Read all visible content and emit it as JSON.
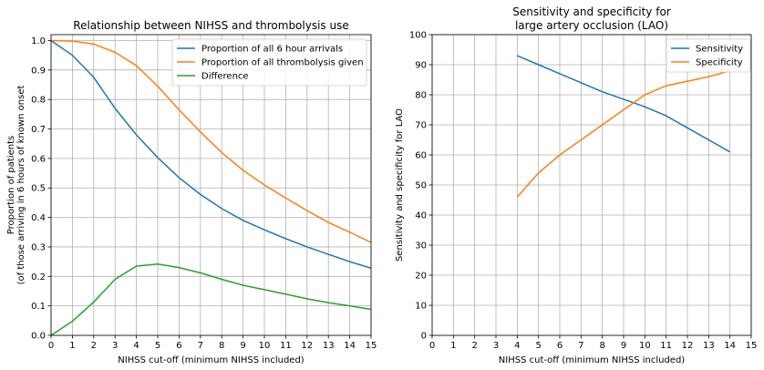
{
  "chart_data": [
    {
      "type": "line",
      "title": "Relationship between NIHSS and thrombolysis use",
      "xlabel": "NIHSS cut-off (minimum NIHSS included)",
      "ylabel": [
        "Proportion of patients",
        "(of those arriving in 6 hours of known onset"
      ],
      "xlim": [
        0,
        15
      ],
      "ylim": [
        0,
        1.02
      ],
      "xticks": [
        0,
        1,
        2,
        3,
        4,
        5,
        6,
        7,
        8,
        9,
        10,
        11,
        12,
        13,
        14,
        15
      ],
      "yticks": [
        0.0,
        0.1,
        0.2,
        0.3,
        0.4,
        0.5,
        0.6,
        0.7,
        0.8,
        0.9,
        1.0
      ],
      "ytick_labels": [
        "0.0",
        "0.1",
        "0.2",
        "0.3",
        "0.4",
        "0.5",
        "0.6",
        "0.7",
        "0.8",
        "0.9",
        "1.0"
      ],
      "grid": true,
      "legend_position": "top-right",
      "series": [
        {
          "name": "Proportion of all 6 hour arrivals",
          "color": "#1f77b4",
          "x": [
            0,
            1,
            2,
            3,
            4,
            5,
            6,
            7,
            8,
            9,
            10,
            11,
            12,
            13,
            14,
            15
          ],
          "y": [
            1.0,
            0.95,
            0.875,
            0.77,
            0.68,
            0.603,
            0.535,
            0.478,
            0.43,
            0.39,
            0.358,
            0.328,
            0.3,
            0.275,
            0.25,
            0.228
          ]
        },
        {
          "name": "Proportion of all thrombolysis given",
          "color": "#ff7f0e",
          "x": [
            0,
            1,
            2,
            3,
            4,
            5,
            6,
            7,
            8,
            9,
            10,
            11,
            12,
            13,
            14,
            15
          ],
          "y": [
            1.0,
            0.998,
            0.988,
            0.96,
            0.915,
            0.845,
            0.765,
            0.69,
            0.62,
            0.56,
            0.51,
            0.466,
            0.423,
            0.383,
            0.35,
            0.315
          ]
        },
        {
          "name": "Difference",
          "color": "#2ca02c",
          "x": [
            0,
            1,
            2,
            3,
            4,
            5,
            6,
            7,
            8,
            9,
            10,
            11,
            12,
            13,
            14,
            15
          ],
          "y": [
            0.0,
            0.048,
            0.113,
            0.19,
            0.235,
            0.242,
            0.23,
            0.212,
            0.19,
            0.17,
            0.155,
            0.14,
            0.124,
            0.111,
            0.1,
            0.088
          ]
        }
      ]
    },
    {
      "type": "line",
      "title": [
        "Sensitivity and specificity for",
        "large artery occlusion (LAO)"
      ],
      "xlabel": "NIHSS cut-off (minimum NIHSS included)",
      "ylabel": [
        "Sensitivity and specificity for LAO"
      ],
      "xlim": [
        0,
        15
      ],
      "ylim": [
        0,
        100
      ],
      "xticks": [
        0,
        1,
        2,
        3,
        4,
        5,
        6,
        7,
        8,
        9,
        10,
        11,
        12,
        13,
        14,
        15
      ],
      "yticks": [
        0,
        10,
        20,
        30,
        40,
        50,
        60,
        70,
        80,
        90,
        100
      ],
      "ytick_labels": [
        "0",
        "10",
        "20",
        "30",
        "40",
        "50",
        "60",
        "70",
        "80",
        "90",
        "100"
      ],
      "grid": true,
      "legend_position": "top-right",
      "series": [
        {
          "name": "Sensitivity",
          "color": "#1f77b4",
          "x": [
            4,
            5,
            6,
            7,
            8,
            9,
            10,
            11,
            12,
            13,
            14
          ],
          "y": [
            93,
            90,
            87,
            84,
            81,
            78.5,
            76,
            73,
            69,
            65,
            61
          ]
        },
        {
          "name": "Specificity",
          "color": "#ff7f0e",
          "x": [
            4,
            5,
            6,
            7,
            8,
            9,
            10,
            11,
            12,
            13,
            14
          ],
          "y": [
            46,
            54,
            60,
            65,
            70,
            75,
            80,
            83,
            84.5,
            86,
            88
          ]
        }
      ]
    }
  ]
}
